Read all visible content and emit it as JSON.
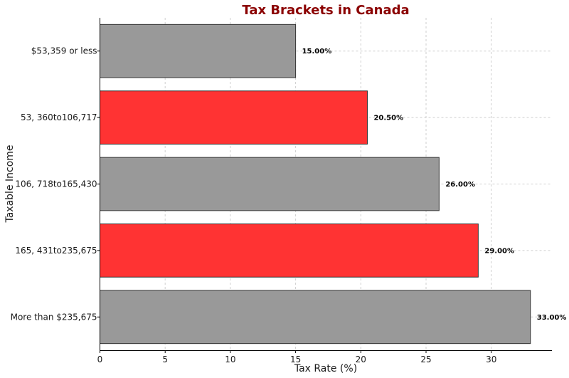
{
  "chart_data": {
    "type": "bar",
    "orientation": "horizontal",
    "title": "Tax Brackets in Canada",
    "xlabel": "Tax Rate (%)",
    "ylabel": "Taxable Income",
    "categories": [
      "$53,359 or less",
      "53, 360to106,717",
      "106, 718to165,430",
      "165, 431to235,675",
      "More than $235,675"
    ],
    "values": [
      15.0,
      20.5,
      26.0,
      29.0,
      33.0
    ],
    "data_labels": [
      "15.00%",
      "20.50%",
      "26.00%",
      "29.00%",
      "33.00%"
    ],
    "bar_colors": [
      "#999999",
      "#ff3333",
      "#999999",
      "#ff3333",
      "#999999"
    ],
    "xlim": [
      0,
      34.65
    ],
    "xticks": [
      0,
      5,
      10,
      15,
      20,
      25,
      30
    ],
    "grid": true,
    "title_color": "#8b0000"
  }
}
